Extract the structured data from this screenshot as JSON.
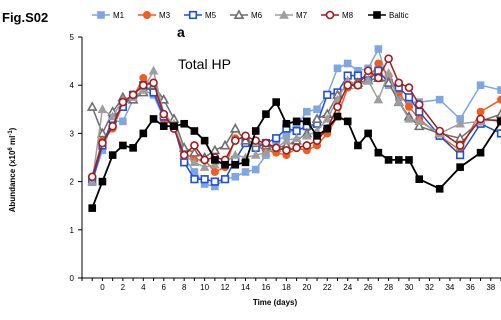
{
  "figure_label": "Fig.S02",
  "chart_data": {
    "type": "line",
    "panel_letter": "a",
    "annotation": "Total HP",
    "xlabel": "Time (days)",
    "ylabel_main": "Abundance (x10",
    "ylabel_sup1": "6",
    "ylabel_mid": " ml",
    "ylabel_sup2": "-1",
    "ylabel_end": ")",
    "ylim": [
      0,
      5
    ],
    "xlim": [
      -2,
      39
    ],
    "x_ticks": [
      0,
      2,
      4,
      6,
      8,
      10,
      12,
      14,
      16,
      18,
      20,
      22,
      24,
      26,
      28,
      30,
      32,
      34,
      36,
      38
    ],
    "y_ticks": [
      0,
      1,
      2,
      3,
      4,
      5
    ],
    "grid": false,
    "legend_position": "top",
    "x": [
      -1,
      0,
      1,
      2,
      3,
      4,
      5,
      6,
      7,
      8,
      9,
      10,
      11,
      12,
      13,
      14,
      15,
      16,
      17,
      18,
      19,
      20,
      21,
      22,
      23,
      24,
      25,
      26,
      27,
      28,
      29,
      30,
      31,
      33,
      35,
      37,
      39
    ],
    "series": [
      {
        "name": "M1",
        "color": "#7ea6e0",
        "marker": "square",
        "filled": true,
        "values": [
          2.0,
          2.65,
          3.25,
          3.25,
          3.7,
          3.9,
          3.8,
          3.3,
          3.15,
          2.5,
          2.2,
          1.95,
          1.9,
          2.05,
          2.1,
          2.2,
          2.25,
          2.55,
          2.85,
          2.95,
          3.15,
          3.45,
          3.5,
          3.8,
          4.35,
          4.45,
          4.3,
          4.35,
          4.75,
          4.0,
          3.75,
          3.65,
          3.65,
          3.7,
          3.3,
          4.0,
          3.9
        ]
      },
      {
        "name": "M3",
        "color": "#f25c1f",
        "marker": "circle",
        "filled": true,
        "values": [
          2.1,
          2.85,
          3.1,
          3.6,
          3.75,
          4.15,
          3.95,
          3.3,
          3.15,
          2.6,
          2.45,
          2.45,
          2.2,
          2.3,
          2.9,
          2.9,
          2.75,
          2.65,
          2.6,
          2.55,
          2.7,
          2.65,
          2.75,
          3.0,
          3.35,
          3.95,
          4.05,
          4.1,
          4.45,
          4.2,
          3.85,
          3.55,
          3.3,
          2.95,
          2.65,
          3.45,
          3.7
        ]
      },
      {
        "name": "M5",
        "color": "#1f4ed8",
        "marker": "square",
        "filled": false,
        "values": [
          2.0,
          2.75,
          3.3,
          3.55,
          3.8,
          4.0,
          3.85,
          3.35,
          3.15,
          2.4,
          2.05,
          2.05,
          2.0,
          2.05,
          2.45,
          2.8,
          2.7,
          2.8,
          2.9,
          3.1,
          3.05,
          3.15,
          3.2,
          3.8,
          3.85,
          4.2,
          4.2,
          4.1,
          4.3,
          4.05,
          3.95,
          3.75,
          3.45,
          2.95,
          2.55,
          3.2,
          3.0
        ]
      },
      {
        "name": "M6",
        "color": "#6d6d6d",
        "marker": "triangle",
        "filled": false,
        "values": [
          3.55,
          3.0,
          3.45,
          3.75,
          3.7,
          3.85,
          4.0,
          3.7,
          3.3,
          2.7,
          2.6,
          2.5,
          2.65,
          2.75,
          3.1,
          2.85,
          2.8,
          2.75,
          2.7,
          2.75,
          2.85,
          3.0,
          3.3,
          3.4,
          3.8,
          4.0,
          4.05,
          4.1,
          4.15,
          4.05,
          3.65,
          3.35,
          3.15,
          3.0,
          2.9,
          3.25,
          3.4
        ]
      },
      {
        "name": "M7",
        "color": "#9e9e9e",
        "marker": "triangle",
        "filled": true,
        "values": [
          2.0,
          3.5,
          3.35,
          3.7,
          3.75,
          3.9,
          4.3,
          3.4,
          3.2,
          2.55,
          2.4,
          2.3,
          2.35,
          2.4,
          2.55,
          2.5,
          2.55,
          2.6,
          2.7,
          2.85,
          2.9,
          2.95,
          3.05,
          3.3,
          3.7,
          4.1,
          4.0,
          4.1,
          3.7,
          4.25,
          3.65,
          3.3,
          3.25,
          3.0,
          3.2,
          3.25,
          3.3
        ]
      },
      {
        "name": "M8",
        "color": "#a31b1b",
        "marker": "circle",
        "filled": false,
        "values": [
          2.1,
          2.8,
          3.15,
          3.65,
          3.8,
          4.0,
          4.05,
          3.4,
          3.1,
          2.55,
          2.75,
          2.45,
          2.5,
          2.45,
          2.85,
          2.95,
          2.85,
          2.8,
          2.7,
          2.65,
          2.7,
          2.75,
          2.85,
          3.1,
          3.55,
          4.0,
          4.0,
          4.3,
          4.15,
          4.55,
          4.05,
          3.95,
          3.6,
          3.05,
          2.75,
          3.3,
          3.25
        ]
      },
      {
        "name": "Baltic",
        "color": "#000000",
        "marker": "square",
        "filled": true,
        "values": [
          1.45,
          2.0,
          2.55,
          2.75,
          2.7,
          3.0,
          3.3,
          3.15,
          3.15,
          3.2,
          3.05,
          2.85,
          2.45,
          2.35,
          2.35,
          2.4,
          3.05,
          3.4,
          3.65,
          3.2,
          3.25,
          3.25,
          2.95,
          3.1,
          3.35,
          3.25,
          2.75,
          3.0,
          2.6,
          2.45,
          2.45,
          2.45,
          2.05,
          1.85,
          2.3,
          2.6,
          3.25
        ]
      }
    ]
  }
}
